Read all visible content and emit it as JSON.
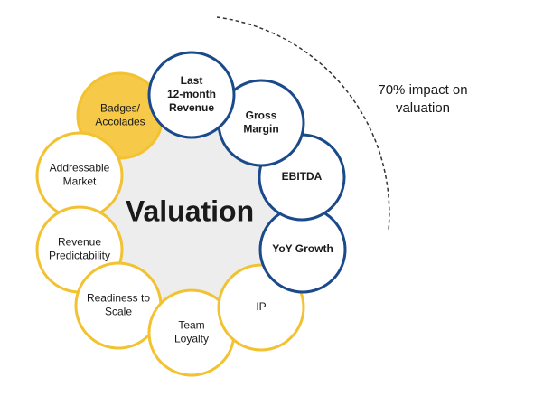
{
  "title": "Valuation",
  "annotation": [
    "70% impact on",
    "valuation"
  ],
  "nodes": [
    {
      "lines": [
        "Badges/",
        "Accolades"
      ],
      "color": "#f2c230",
      "fill": "#f7c948",
      "bold": false
    },
    {
      "lines": [
        "Addressable",
        "Market"
      ],
      "color": "#f2c230",
      "fill": "#ffffff",
      "bold": false
    },
    {
      "lines": [
        "Revenue",
        "Predictability"
      ],
      "color": "#f2c230",
      "fill": "#ffffff",
      "bold": false
    },
    {
      "lines": [
        "Readiness to",
        "Scale"
      ],
      "color": "#f2c230",
      "fill": "#ffffff",
      "bold": false
    },
    {
      "lines": [
        "Team",
        "Loyalty"
      ],
      "color": "#f2c230",
      "fill": "#ffffff",
      "bold": false
    },
    {
      "lines": [
        "IP"
      ],
      "color": "#f2c230",
      "fill": "#ffffff",
      "bold": false
    },
    {
      "lines": [
        "YoY Growth"
      ],
      "color": "#1b4a8a",
      "fill": "#ffffff",
      "bold": true
    },
    {
      "lines": [
        "EBITDA"
      ],
      "color": "#1b4a8a",
      "fill": "#ffffff",
      "bold": true
    },
    {
      "lines": [
        "Gross",
        "Margin"
      ],
      "color": "#1b4a8a",
      "fill": "#ffffff",
      "bold": true
    },
    {
      "lines": [
        "Last",
        "12-month",
        "Revenue"
      ],
      "color": "#1b4a8a",
      "fill": "#ffffff",
      "bold": true
    }
  ]
}
